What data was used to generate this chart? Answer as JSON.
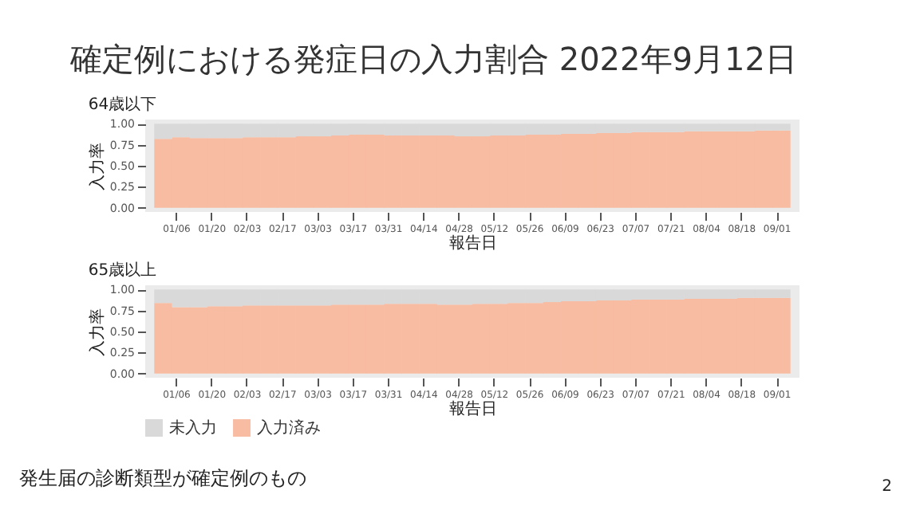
{
  "chart_data": [
    {
      "type": "other",
      "title": "確定例における発症日の入力割合 2022年9月12日",
      "annotations": [
        "発生届の診断類型が確定例のもの",
        "2"
      ]
    },
    {
      "type": "bar",
      "stacked": true,
      "title": "64歳以下",
      "xlabel": "報告日",
      "ylabel": "入力率",
      "legend": false,
      "grid": false,
      "x": [
        "2022-01-01",
        "2022-01-08",
        "2022-01-15",
        "2022-01-22",
        "2022-01-29",
        "2022-02-05",
        "2022-02-12",
        "2022-02-19",
        "2022-02-26",
        "2022-03-05",
        "2022-03-12",
        "2022-03-19",
        "2022-03-26",
        "2022-04-02",
        "2022-04-09",
        "2022-04-16",
        "2022-04-23",
        "2022-04-30",
        "2022-05-07",
        "2022-05-14",
        "2022-05-21",
        "2022-05-28",
        "2022-06-04",
        "2022-06-11",
        "2022-06-18",
        "2022-06-25",
        "2022-07-02",
        "2022-07-09",
        "2022-07-16",
        "2022-07-23",
        "2022-07-30",
        "2022-08-06",
        "2022-08-13",
        "2022-08-20",
        "2022-08-27",
        "2022-09-03"
      ],
      "series": [
        {
          "color": "#f8bca2",
          "values": [
            0.82,
            0.84,
            0.83,
            0.83,
            0.83,
            0.84,
            0.84,
            0.84,
            0.85,
            0.85,
            0.86,
            0.87,
            0.87,
            0.86,
            0.86,
            0.86,
            0.86,
            0.85,
            0.85,
            0.86,
            0.86,
            0.87,
            0.87,
            0.88,
            0.88,
            0.89,
            0.89,
            0.9,
            0.9,
            0.9,
            0.91,
            0.91,
            0.91,
            0.91,
            0.92,
            0.92
          ]
        },
        {
          "color": "#d9d9d9",
          "values": [
            0.18,
            0.16,
            0.17,
            0.17,
            0.17,
            0.16,
            0.16,
            0.16,
            0.15,
            0.15,
            0.14,
            0.13,
            0.13,
            0.14,
            0.14,
            0.14,
            0.14,
            0.15,
            0.15,
            0.14,
            0.14,
            0.13,
            0.13,
            0.12,
            0.12,
            0.11,
            0.11,
            0.1,
            0.1,
            0.1,
            0.09,
            0.09,
            0.09,
            0.09,
            0.08,
            0.08
          ]
        }
      ],
      "xlim": [
        "2021-12-28",
        "2022-09-07"
      ],
      "xticks": [
        {
          "value": "2022-01-06",
          "label": "01/06"
        },
        {
          "value": "2022-01-20",
          "label": "01/20"
        },
        {
          "value": "2022-02-03",
          "label": "02/03"
        },
        {
          "value": "2022-02-17",
          "label": "02/17"
        },
        {
          "value": "2022-03-03",
          "label": "03/03"
        },
        {
          "value": "2022-03-17",
          "label": "03/17"
        },
        {
          "value": "2022-03-31",
          "label": "03/31"
        },
        {
          "value": "2022-04-14",
          "label": "04/14"
        },
        {
          "value": "2022-04-28",
          "label": "04/28"
        },
        {
          "value": "2022-05-12",
          "label": "05/12"
        },
        {
          "value": "2022-05-26",
          "label": "05/26"
        },
        {
          "value": "2022-06-09",
          "label": "06/09"
        },
        {
          "value": "2022-06-23",
          "label": "06/23"
        },
        {
          "value": "2022-07-07",
          "label": "07/07"
        },
        {
          "value": "2022-07-21",
          "label": "07/21"
        },
        {
          "value": "2022-08-04",
          "label": "08/04"
        },
        {
          "value": "2022-08-18",
          "label": "08/18"
        },
        {
          "value": "2022-09-01",
          "label": "09/01"
        }
      ],
      "ylim": [
        -0.05,
        1.05
      ],
      "yticks": [
        {
          "value": 0,
          "label": "0.00"
        },
        {
          "value": 0.25,
          "label": "0.25"
        },
        {
          "value": 0.5,
          "label": "0.50"
        },
        {
          "value": 0.75,
          "label": "0.75"
        },
        {
          "value": 1,
          "label": "1.00"
        }
      ]
    },
    {
      "type": "bar",
      "stacked": true,
      "title": "65歳以上",
      "xlabel": "報告日",
      "ylabel": "入力率",
      "legend": "bottom",
      "grid": false,
      "x": [
        "2022-01-01",
        "2022-01-08",
        "2022-01-15",
        "2022-01-22",
        "2022-01-29",
        "2022-02-05",
        "2022-02-12",
        "2022-02-19",
        "2022-02-26",
        "2022-03-05",
        "2022-03-12",
        "2022-03-19",
        "2022-03-26",
        "2022-04-02",
        "2022-04-09",
        "2022-04-16",
        "2022-04-23",
        "2022-04-30",
        "2022-05-07",
        "2022-05-14",
        "2022-05-21",
        "2022-05-28",
        "2022-06-04",
        "2022-06-11",
        "2022-06-18",
        "2022-06-25",
        "2022-07-02",
        "2022-07-09",
        "2022-07-16",
        "2022-07-23",
        "2022-07-30",
        "2022-08-06",
        "2022-08-13",
        "2022-08-20",
        "2022-08-27",
        "2022-09-03"
      ],
      "series": [
        {
          "name": "入力済み",
          "color": "#f8bca2",
          "values": [
            0.84,
            0.79,
            0.79,
            0.8,
            0.8,
            0.81,
            0.81,
            0.81,
            0.81,
            0.81,
            0.82,
            0.82,
            0.82,
            0.83,
            0.83,
            0.83,
            0.82,
            0.82,
            0.83,
            0.83,
            0.84,
            0.84,
            0.85,
            0.86,
            0.86,
            0.87,
            0.87,
            0.88,
            0.88,
            0.88,
            0.89,
            0.89,
            0.89,
            0.9,
            0.9,
            0.9
          ]
        },
        {
          "name": "未入力",
          "color": "#d9d9d9",
          "values": [
            0.16,
            0.21,
            0.21,
            0.2,
            0.2,
            0.19,
            0.19,
            0.19,
            0.19,
            0.19,
            0.18,
            0.18,
            0.18,
            0.17,
            0.17,
            0.17,
            0.18,
            0.18,
            0.17,
            0.17,
            0.16,
            0.16,
            0.15,
            0.14,
            0.14,
            0.13,
            0.13,
            0.12,
            0.12,
            0.12,
            0.11,
            0.11,
            0.11,
            0.1,
            0.1,
            0.1
          ]
        }
      ],
      "xlim": [
        "2021-12-28",
        "2022-09-07"
      ],
      "xticks": [
        {
          "value": "2022-01-06",
          "label": "01/06"
        },
        {
          "value": "2022-01-20",
          "label": "01/20"
        },
        {
          "value": "2022-02-03",
          "label": "02/03"
        },
        {
          "value": "2022-02-17",
          "label": "02/17"
        },
        {
          "value": "2022-03-03",
          "label": "03/03"
        },
        {
          "value": "2022-03-17",
          "label": "03/17"
        },
        {
          "value": "2022-03-31",
          "label": "03/31"
        },
        {
          "value": "2022-04-14",
          "label": "04/14"
        },
        {
          "value": "2022-04-28",
          "label": "04/28"
        },
        {
          "value": "2022-05-12",
          "label": "05/12"
        },
        {
          "value": "2022-05-26",
          "label": "05/26"
        },
        {
          "value": "2022-06-09",
          "label": "06/09"
        },
        {
          "value": "2022-06-23",
          "label": "06/23"
        },
        {
          "value": "2022-07-07",
          "label": "07/07"
        },
        {
          "value": "2022-07-21",
          "label": "07/21"
        },
        {
          "value": "2022-08-04",
          "label": "08/04"
        },
        {
          "value": "2022-08-18",
          "label": "08/18"
        },
        {
          "value": "2022-09-01",
          "label": "09/01"
        }
      ],
      "ylim": [
        -0.05,
        1.05
      ],
      "yticks": [
        {
          "value": 0,
          "label": "0.00"
        },
        {
          "value": 0.25,
          "label": "0.25"
        },
        {
          "value": 0.5,
          "label": "0.50"
        },
        {
          "value": 0.75,
          "label": "0.75"
        },
        {
          "value": 1,
          "label": "1.00"
        }
      ]
    }
  ]
}
